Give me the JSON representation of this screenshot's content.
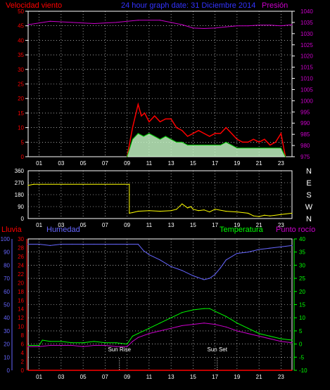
{
  "header": {
    "wind_label": "Velocidad viento",
    "title": "24 hour graph date: 31 Diciembre 2014",
    "pressure_label": "Presión"
  },
  "colors": {
    "wind": "#ff0000",
    "gust": "#ff0000",
    "avg_wind": "#00cc00",
    "wind_fill": "#ccffcc",
    "pressure": "#cc00cc",
    "direction": "#ffff00",
    "rain": "#ff0000",
    "humidity": "#6666ff",
    "temperature": "#00ff00",
    "dewpoint": "#cc00cc",
    "grid": "#ffffff",
    "title": "#3333ff",
    "axis_left_red": "#ff0000",
    "axis_right_magenta": "#cc00cc",
    "axis_white": "#ffffff",
    "axis_blue": "#6666ff",
    "axis_green": "#00ff00"
  },
  "chart_data": [
    {
      "id": "wind-pressure",
      "type": "line",
      "x_ticks": [
        "01",
        "03",
        "05",
        "07",
        "09",
        "11",
        "13",
        "15",
        "17",
        "19",
        "21",
        "23"
      ],
      "y_left_ticks": [
        "0",
        "5",
        "10",
        "15",
        "20",
        "25",
        "30",
        "35",
        "40",
        "45",
        "50"
      ],
      "y_right_ticks": [
        "975",
        "980",
        "985",
        "990",
        "995",
        "1000",
        "1005",
        "1010",
        "1015",
        "1020",
        "1025",
        "1030",
        "1035",
        "1040"
      ],
      "y_left_range": [
        0,
        50
      ],
      "y_right_range": [
        975,
        1040
      ],
      "series": [
        {
          "key": "pressure",
          "name": "Presión",
          "axis": "right",
          "x": [
            0,
            2,
            4,
            6,
            8,
            10,
            12,
            14,
            15,
            16,
            17,
            18,
            19,
            20,
            21,
            22,
            23,
            24
          ],
          "y": [
            1034,
            1035.5,
            1035,
            1034.5,
            1035,
            1036,
            1036,
            1034,
            1032.5,
            1032.3,
            1032.5,
            1033,
            1033.5,
            1033.5,
            1033.8,
            1033.8,
            1033.5,
            1034
          ]
        },
        {
          "key": "gust",
          "name": "Velocidad viento",
          "axis": "left",
          "x": [
            9,
            9.5,
            10,
            10.3,
            10.6,
            11,
            11.5,
            12,
            12.5,
            13,
            13.5,
            14,
            14.5,
            15,
            15.5,
            16,
            16.5,
            17,
            17.5,
            18,
            18.5,
            19,
            19.5,
            20,
            20.5,
            21,
            21.5,
            22,
            22.5,
            23,
            23.4
          ],
          "y": [
            0,
            10,
            18,
            14,
            15,
            12,
            14,
            12,
            13,
            13,
            10,
            9,
            7,
            8,
            9,
            8,
            7,
            8,
            8,
            10,
            8,
            6,
            5,
            5,
            6,
            5,
            6,
            4,
            5,
            8,
            0
          ]
        },
        {
          "key": "avg_wind",
          "name": "",
          "axis": "left",
          "x": [
            9,
            9.5,
            10,
            10.5,
            11,
            11.5,
            12,
            12.5,
            13,
            13.5,
            14,
            14.5,
            15,
            15.5,
            16,
            16.5,
            17,
            17.5,
            18,
            18.5,
            19,
            19.5,
            20,
            20.5,
            21,
            21.5,
            22,
            22.5,
            23,
            23.4
          ],
          "y": [
            0,
            6,
            8,
            7,
            8,
            7,
            6,
            7,
            6,
            5,
            5,
            4,
            4,
            4,
            4,
            4,
            4,
            4,
            5,
            4,
            3,
            3,
            3,
            3,
            3,
            3,
            3,
            3,
            3,
            0
          ]
        }
      ]
    },
    {
      "id": "direction",
      "type": "line",
      "x_ticks": [
        "01",
        "03",
        "05",
        "07",
        "09",
        "11",
        "13",
        "15",
        "17",
        "19",
        "21",
        "23"
      ],
      "y_left_ticks": [
        "0",
        "90",
        "180",
        "270",
        "360"
      ],
      "y_right_ticks": [
        "N",
        "W",
        "S",
        "E",
        "N"
      ],
      "y_left_range": [
        0,
        360
      ],
      "series": [
        {
          "key": "direction",
          "name": "",
          "x": [
            0,
            0.5,
            9.2,
            9.2,
            9.5,
            10,
            11,
            12,
            13,
            13.5,
            14,
            14.5,
            14.8,
            15,
            15.5,
            16,
            16.5,
            17,
            18,
            19,
            20,
            20.5,
            21,
            21.5,
            22,
            23,
            24
          ],
          "y": [
            250,
            258,
            258,
            40,
            45,
            55,
            60,
            55,
            60,
            70,
            110,
            80,
            90,
            70,
            60,
            65,
            50,
            70,
            55,
            50,
            40,
            20,
            15,
            25,
            20,
            30,
            40
          ]
        }
      ]
    },
    {
      "id": "hum-temp",
      "type": "line",
      "header": {
        "rain_label": "Lluvia",
        "humidity_label": "Humedad",
        "temperature_label": "Temperatura",
        "dewpoint_label": "Punto rocío",
        "sunrise_label": "Sun Rise",
        "sunset_label": "Sun Set"
      },
      "x_ticks": [
        "01",
        "03",
        "05",
        "07",
        "09",
        "11",
        "13",
        "15",
        "17",
        "19",
        "21",
        "23"
      ],
      "y_humidity_ticks": [
        "0",
        "10",
        "20",
        "30",
        "40",
        "50",
        "60",
        "70",
        "80",
        "90",
        "100"
      ],
      "y_rain_ticks": [
        "0",
        "2",
        "4",
        "6",
        "8",
        "10",
        "12",
        "14",
        "16",
        "18",
        "20",
        "22",
        "24",
        "26",
        "28",
        "30"
      ],
      "y_temp_ticks": [
        "-10",
        "-5",
        "0",
        "5",
        "10",
        "15",
        "20",
        "25",
        "30",
        "35",
        "40"
      ],
      "humidity_range": [
        0,
        100
      ],
      "rain_range": [
        0,
        30
      ],
      "temp_range": [
        -10,
        40
      ],
      "sunrise_hour": 8.3,
      "sunset_hour": 17.2,
      "series": [
        {
          "key": "humidity",
          "name": "Humedad",
          "x": [
            0,
            1,
            2,
            3,
            4,
            5,
            6,
            7,
            8,
            9,
            10,
            10.5,
            11,
            12,
            13,
            14,
            15,
            16,
            16.5,
            17,
            17.5,
            18,
            19,
            20,
            21,
            22,
            23,
            24
          ],
          "y": [
            96,
            96,
            95,
            96,
            96,
            96,
            96,
            96,
            96,
            96,
            96,
            91,
            88,
            84,
            79,
            76,
            72,
            69,
            70,
            73,
            78,
            84,
            89,
            90,
            92,
            93,
            94,
            95
          ]
        },
        {
          "key": "temperature",
          "name": "Temperatura",
          "x": [
            0,
            1,
            1.3,
            2,
            3,
            4,
            5,
            6,
            7,
            8,
            9,
            9.5,
            10,
            11,
            12,
            13,
            14,
            15,
            16,
            16.5,
            17,
            18,
            19,
            20,
            21,
            22,
            23,
            24
          ],
          "y": [
            -0.5,
            -0.5,
            1.5,
            1,
            1,
            0.5,
            0.5,
            1,
            0.5,
            0.5,
            0,
            3,
            4,
            6,
            8,
            10,
            12,
            13,
            13.5,
            13.5,
            12.5,
            10.5,
            8,
            6,
            4,
            3,
            2,
            1.5
          ]
        },
        {
          "key": "dewpoint",
          "name": "Punto rocío",
          "x": [
            0,
            1,
            2,
            3,
            4,
            5,
            6,
            7,
            8,
            9,
            9.5,
            10,
            11,
            12,
            13,
            14,
            15,
            16,
            17,
            18,
            19,
            20,
            21,
            22,
            23,
            24
          ],
          "y": [
            -1,
            -1,
            -0.5,
            -0.5,
            -0.5,
            -1,
            -0.5,
            -0.5,
            -1,
            -1,
            1,
            2.5,
            4,
            5,
            6,
            7,
            7.5,
            8,
            7.5,
            6.5,
            5,
            4,
            3,
            2,
            1,
            0.5
          ]
        },
        {
          "key": "rain",
          "name": "Lluvia",
          "axis": "rain",
          "x": [
            0,
            24
          ],
          "y": [
            0,
            0
          ]
        }
      ]
    }
  ]
}
